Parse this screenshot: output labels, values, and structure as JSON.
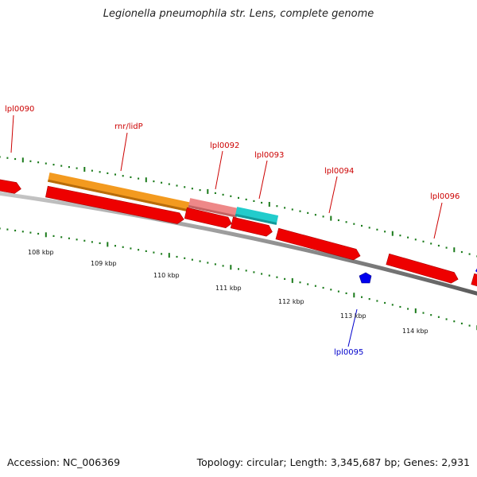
{
  "title": "Legionella pneumophila str. Lens, complete genome",
  "footer": {
    "accession": "Accession: NC_006369",
    "summary": "Topology: circular; Length: 3,345,687 bp; Genes: 2,931"
  },
  "colors": {
    "backbone": "#8a8a8a",
    "gene_red": "#ee0000",
    "label_red": "#cc0000",
    "label_blue": "#0000cc",
    "orange": "#f39a1f",
    "pink": "#ee8888",
    "cyan": "#22cccc",
    "blue": "#0000ee",
    "tick_green": "#1a7a1a"
  },
  "tick_labels": [
    "108 kbp",
    "109 kbp",
    "110 kbp",
    "111 kbp",
    "112 kbp",
    "113 kbp",
    "114 kbp"
  ],
  "gene_labels": [
    {
      "text": "lpl0090",
      "color": "red"
    },
    {
      "text": "rnr/lidP",
      "color": "red"
    },
    {
      "text": "lpl0092",
      "color": "red"
    },
    {
      "text": "lpl0093",
      "color": "red"
    },
    {
      "text": "lpl0094",
      "color": "red"
    },
    {
      "text": "lpl0096",
      "color": "red"
    },
    {
      "text": "lpl0095",
      "color": "blue"
    }
  ]
}
